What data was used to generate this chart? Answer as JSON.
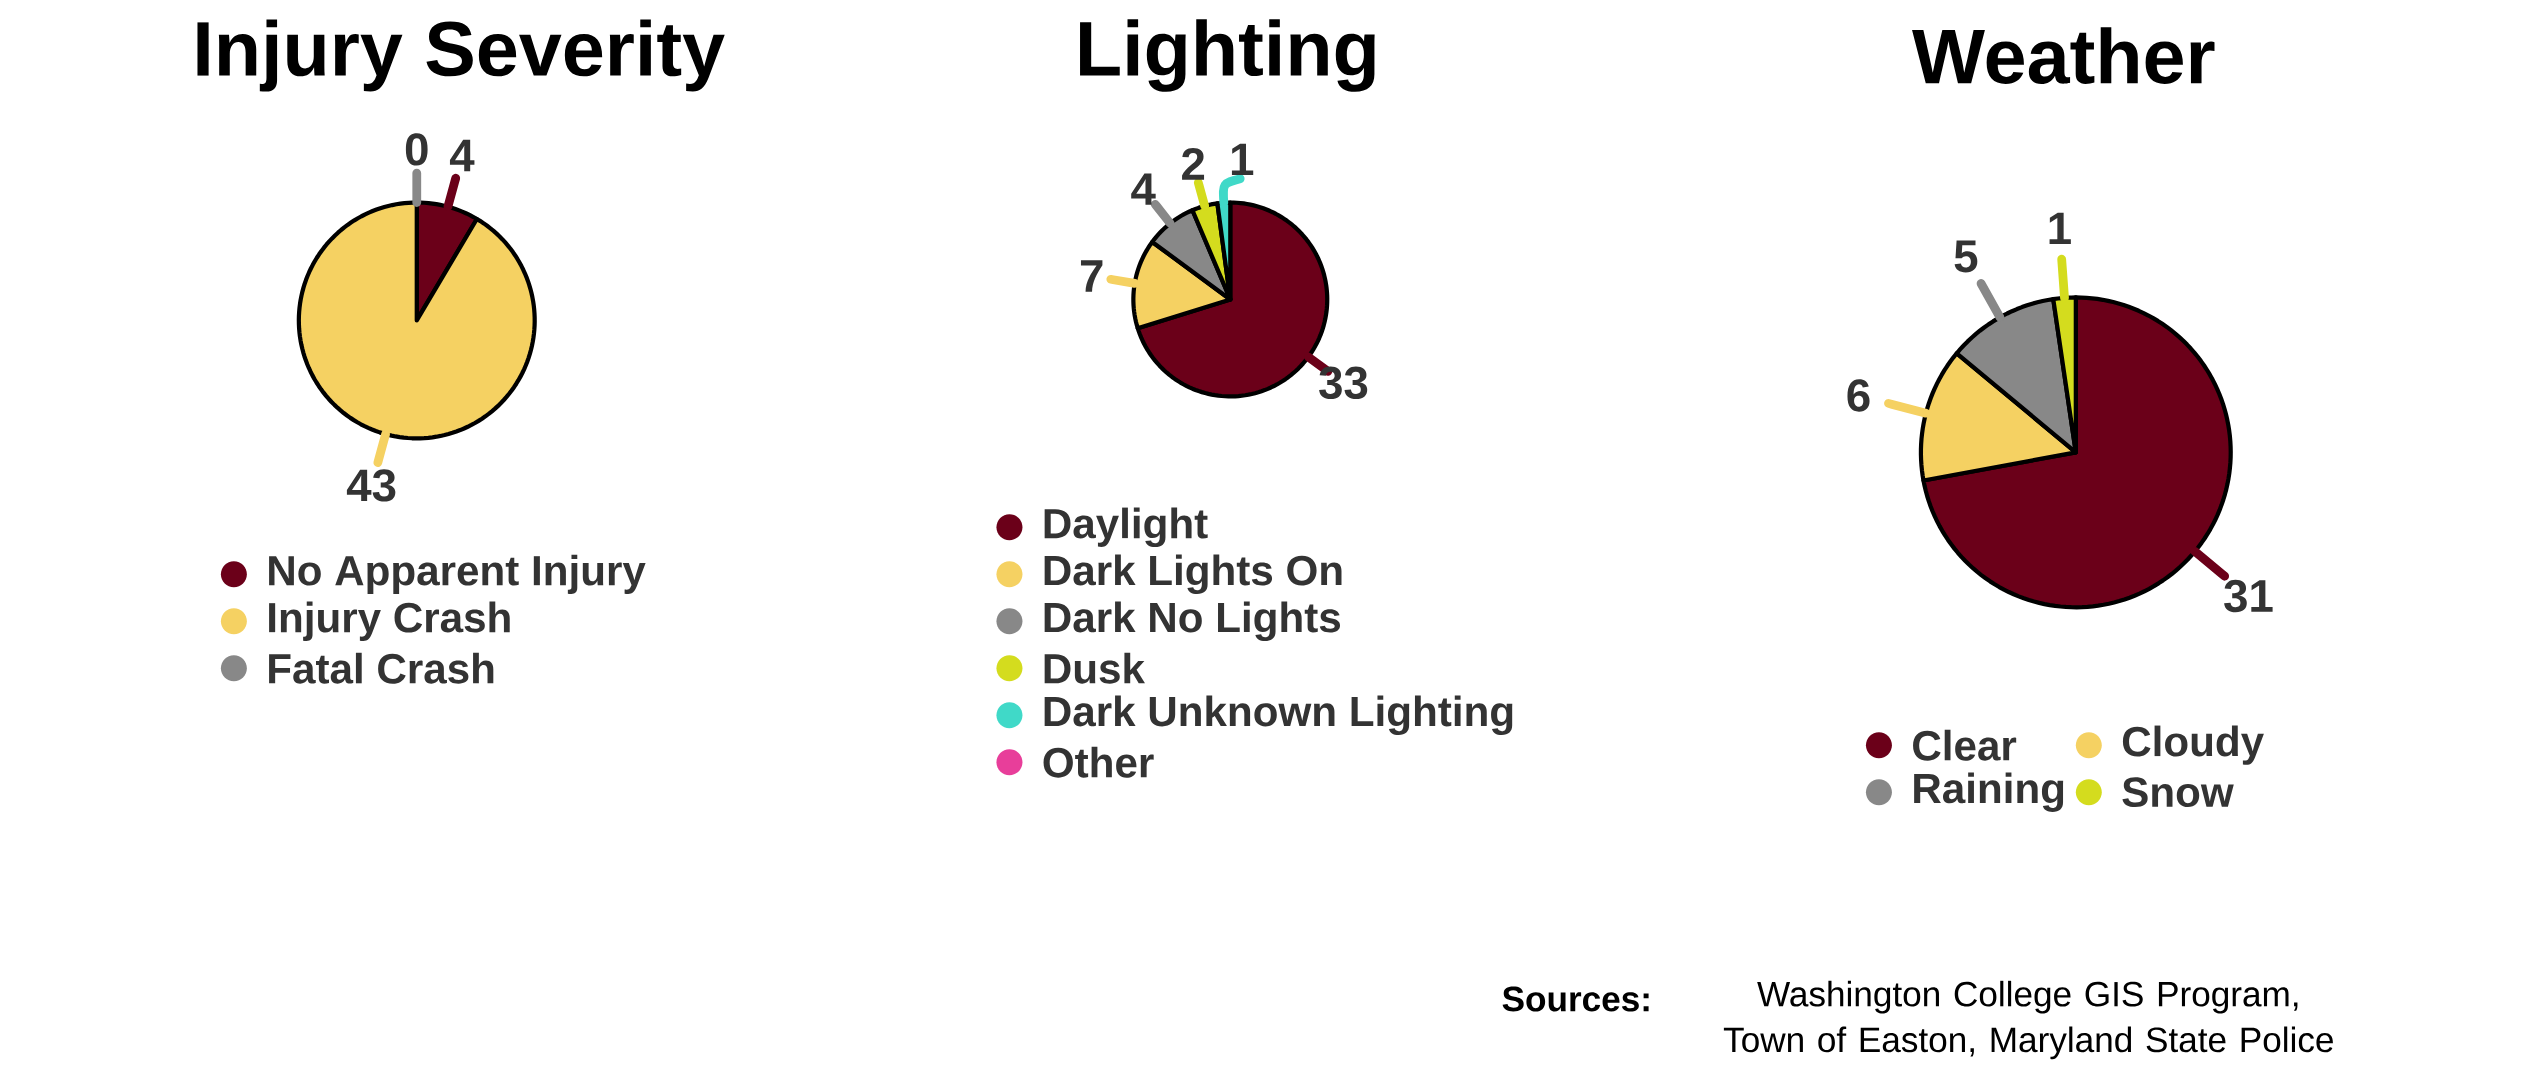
{
  "chart_data": [
    {
      "type": "pie",
      "title": "Injury Severity",
      "categories": [
        "No Apparent Injury",
        "Injury Crash",
        "Fatal Crash"
      ],
      "values": [
        4,
        43,
        0
      ],
      "value_labels": [
        "4",
        "43",
        "0"
      ],
      "colors": [
        "#6b0019",
        "#f5d162",
        "#888888"
      ],
      "legend": "bottom"
    },
    {
      "type": "pie",
      "title": "Lighting",
      "categories": [
        "Daylight",
        "Dark Lights On",
        "Dark No Lights",
        "Dusk",
        "Dark Unknown Lighting",
        "Other"
      ],
      "values": [
        33,
        7,
        4,
        2,
        1,
        0
      ],
      "value_labels": [
        "33",
        "7",
        "4",
        "2",
        "1",
        null
      ],
      "colors": [
        "#6b0019",
        "#f5d162",
        "#888888",
        "#d4dc1e",
        "#40d9c8",
        "#e83e9a"
      ],
      "legend": "bottom"
    },
    {
      "type": "pie",
      "title": "Weather",
      "categories": [
        "Clear",
        "Cloudy",
        "Raining",
        "Snow"
      ],
      "values": [
        31,
        6,
        5,
        1
      ],
      "colors": [
        "#6b0019",
        "#f5d162",
        "#888888",
        "#d4dc1e"
      ],
      "data_labels": true,
      "legend": "bottom",
      "annotations": [
        "Sources:",
        "Washington College GIS Program, Town of Easton, Maryland State Police"
      ]
    }
  ]
}
